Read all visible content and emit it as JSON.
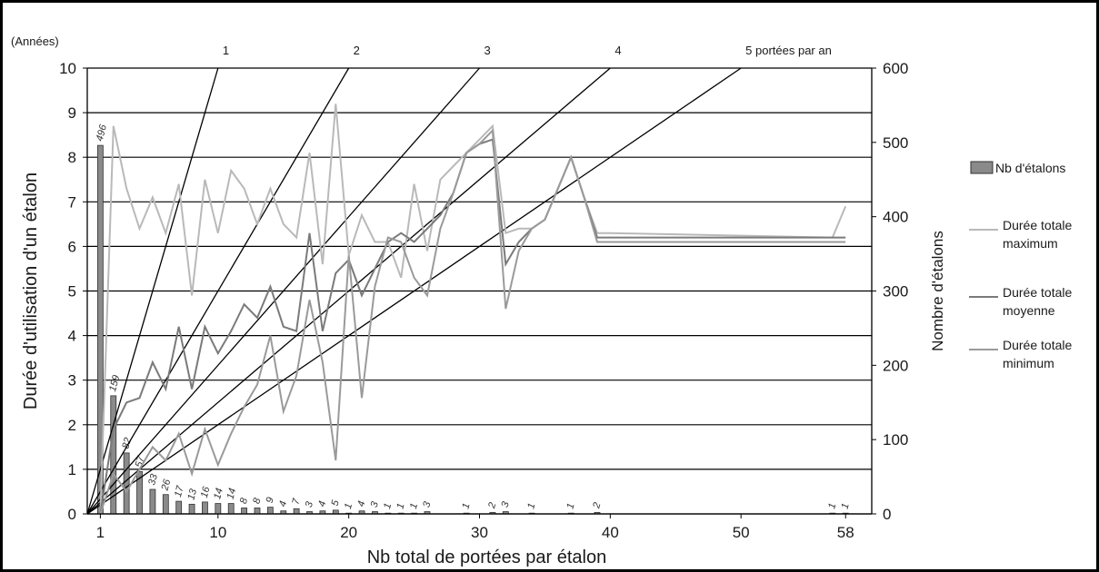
{
  "chart_data": {
    "type": "bar+line",
    "xlabel": "Nb total de portées par étalon",
    "ylabel_left": "Durée d'utilisation d'un étalon",
    "ylabel_left_unit": "(Années)",
    "ylabel_right": "Nombre d'étalons",
    "ylim_left": [
      0,
      10
    ],
    "ylim_right": [
      0,
      600
    ],
    "xlim": [
      0,
      60
    ],
    "x_ticks": [
      1,
      10,
      20,
      30,
      40,
      50,
      58
    ],
    "y_ticks_left": [
      0,
      1,
      2,
      3,
      4,
      5,
      6,
      7,
      8,
      9,
      10
    ],
    "y_ticks_right": [
      0,
      100,
      200,
      300,
      400,
      500,
      600
    ],
    "grid": "horizontal",
    "legend_position": "right",
    "bars": {
      "name": "Nb d'étalons",
      "axis": "right",
      "x": [
        1,
        2,
        3,
        4,
        5,
        6,
        7,
        8,
        9,
        10,
        11,
        12,
        13,
        14,
        15,
        16,
        17,
        18,
        19,
        20,
        21,
        22,
        23,
        24,
        25,
        26,
        29,
        31,
        32,
        34,
        37,
        39,
        57,
        58
      ],
      "values": [
        496,
        159,
        82,
        57,
        33,
        26,
        17,
        13,
        16,
        14,
        14,
        8,
        8,
        9,
        4,
        7,
        3,
        4,
        5,
        1,
        4,
        3,
        1,
        1,
        1,
        3,
        1,
        2,
        3,
        1,
        1,
        2,
        1,
        1
      ]
    },
    "rate_lines": {
      "labels": [
        "1",
        "2",
        "3",
        "4",
        "5"
      ],
      "suffix": "portées par an",
      "rates": [
        1,
        2,
        3,
        4,
        5
      ]
    },
    "series": [
      {
        "name": "Durée totale maximum",
        "color": "#b9b9b9",
        "x": [
          1,
          2,
          3,
          4,
          5,
          6,
          7,
          8,
          9,
          10,
          11,
          12,
          13,
          14,
          15,
          16,
          17,
          18,
          19,
          20,
          21,
          22,
          23,
          24,
          25,
          26,
          27,
          28,
          29,
          30,
          31,
          32,
          33,
          34,
          35,
          36,
          37,
          38,
          39,
          40,
          57,
          58
        ],
        "values": [
          0,
          8.7,
          7.3,
          6.4,
          7.1,
          6.3,
          7.4,
          4.9,
          7.5,
          6.3,
          7.7,
          7.3,
          6.5,
          7.3,
          6.5,
          6.2,
          8.1,
          5.6,
          9.2,
          5.8,
          6.7,
          6.1,
          6.1,
          5.3,
          7.4,
          5.9,
          7.5,
          7.8,
          8.1,
          8.4,
          8.7,
          6.3,
          6.4,
          6.4,
          6.6,
          7.3,
          8,
          7.1,
          6.3,
          6.3,
          6.2,
          6.9
        ]
      },
      {
        "name": "Durée totale moyenne",
        "color": "#7a7a7a",
        "x": [
          1,
          2,
          3,
          4,
          5,
          6,
          7,
          8,
          9,
          10,
          11,
          12,
          13,
          14,
          15,
          16,
          17,
          18,
          19,
          20,
          21,
          22,
          23,
          24,
          25,
          26,
          27,
          28,
          29,
          30,
          31,
          32,
          33,
          34,
          35,
          36,
          37,
          38,
          39,
          40,
          57,
          58
        ],
        "values": [
          0,
          1.9,
          2.5,
          2.6,
          3.4,
          2.8,
          4.2,
          2.8,
          4.2,
          3.6,
          4.1,
          4.7,
          4.4,
          5.1,
          4.2,
          4.1,
          6.3,
          4.1,
          5.4,
          5.7,
          4.9,
          5.5,
          6.1,
          6.3,
          6.1,
          6.4,
          6.7,
          7.2,
          8.1,
          8.3,
          8.4,
          5.6,
          6.1,
          6.4,
          6.6,
          7.3,
          8,
          7.1,
          6.2,
          6.2,
          6.2,
          6.2
        ]
      },
      {
        "name": "Durée totale minimum",
        "color": "#9a9a9a",
        "x": [
          1,
          2,
          3,
          4,
          5,
          6,
          7,
          8,
          9,
          10,
          11,
          12,
          13,
          14,
          15,
          16,
          17,
          18,
          19,
          20,
          21,
          22,
          23,
          24,
          25,
          26,
          27,
          28,
          29,
          30,
          31,
          32,
          33,
          34,
          35,
          36,
          37,
          38,
          39,
          40,
          57,
          58
        ],
        "values": [
          0,
          0.9,
          0.5,
          1.0,
          1.5,
          1.2,
          1.8,
          0.9,
          1.9,
          1.1,
          1.8,
          2.4,
          2.9,
          4.0,
          2.3,
          3.1,
          4.8,
          3.4,
          1.2,
          5.8,
          2.6,
          5.1,
          6.2,
          6.1,
          5.3,
          4.9,
          6.4,
          7.2,
          8.1,
          8.3,
          8.6,
          4.6,
          5.9,
          6.4,
          6.6,
          7.3,
          8,
          7.1,
          6.1,
          6.1,
          6.1,
          6.1
        ]
      }
    ]
  }
}
